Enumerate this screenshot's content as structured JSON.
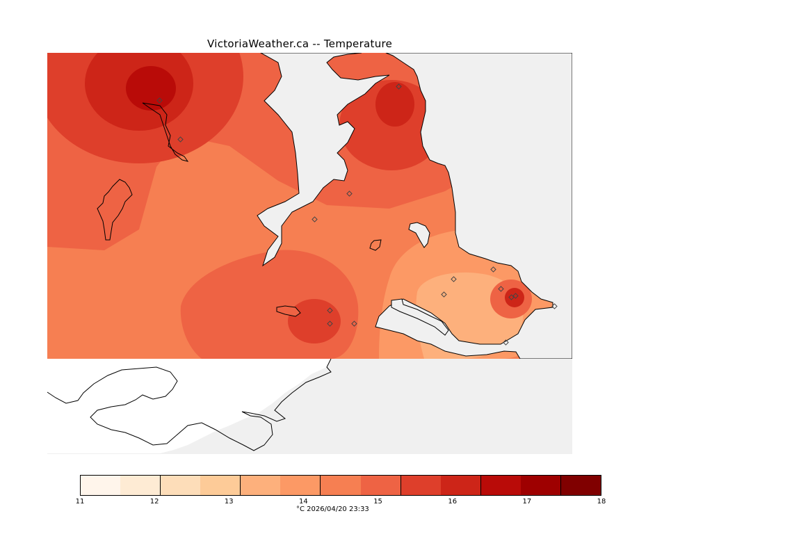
{
  "title": "VictoriaWeather.ca -- Temperature",
  "footer": "°C  2026/04/20 23:33",
  "legend": {
    "ticks": [
      "11",
      "12",
      "13",
      "14",
      "15",
      "16",
      "17",
      "18"
    ],
    "colors": [
      "#fff5eb",
      "#feebd4",
      "#fdddb9",
      "#fdcb98",
      "#fdb07c",
      "#fc9965",
      "#f67f52",
      "#ee6344",
      "#de3f2b",
      "#cd2518",
      "#b90b08",
      "#9e0000",
      "#800000"
    ]
  },
  "colors": {
    "land_fill": "#f0f0f0",
    "other_land": "#ffffff",
    "station": "#444444"
  }
}
